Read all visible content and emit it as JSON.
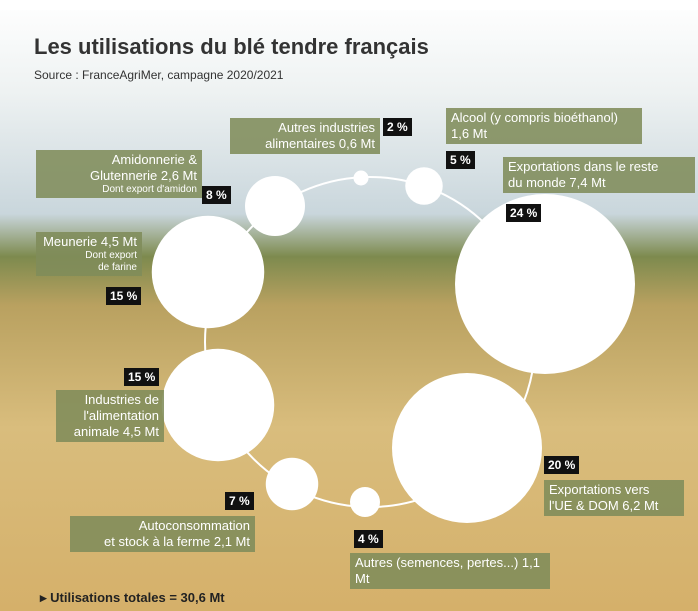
{
  "chart_data": {
    "type": "bubble",
    "title": "Les utilisations du blé tendre français",
    "subtitle": "Source : FranceAgriMer, campagne 2020/2021",
    "categories": [
      [
        "Autres industries",
        "alimentaires 0,6 Mt"
      ],
      [
        "Alcool (y compris bioéthanol)",
        "1,6 Mt"
      ],
      [
        "Exportations dans le reste",
        "du monde 7,4 Mt"
      ],
      [
        "Exportations vers",
        "l'UE & DOM 6,2 Mt"
      ],
      [
        "Autres (semences, pertes...) 1,1 Mt"
      ],
      [
        "Autoconsommation",
        "et stock à la ferme 2,1 Mt"
      ],
      [
        "Industries de",
        "l'alimentation",
        "animale 4,5 Mt"
      ],
      [
        "Meunerie 4,5 Mt"
      ],
      [
        "Amidonnerie &",
        "Glutennerie 2,6 Mt"
      ]
    ],
    "notes": [
      null,
      null,
      null,
      null,
      null,
      null,
      null,
      [
        "Dont export",
        "de farine"
      ],
      [
        "Dont export d'amidon"
      ]
    ],
    "values": [
      2,
      5,
      24,
      20,
      4,
      7,
      15,
      15,
      8
    ],
    "value_labels": [
      "2 %",
      "5 %",
      "24 %",
      "20 %",
      "4 %",
      "7 %",
      "15 %",
      "15 %",
      "8 %"
    ],
    "color": "#ffffff",
    "footer": "Utilisations totales = 30,6 Mt"
  }
}
